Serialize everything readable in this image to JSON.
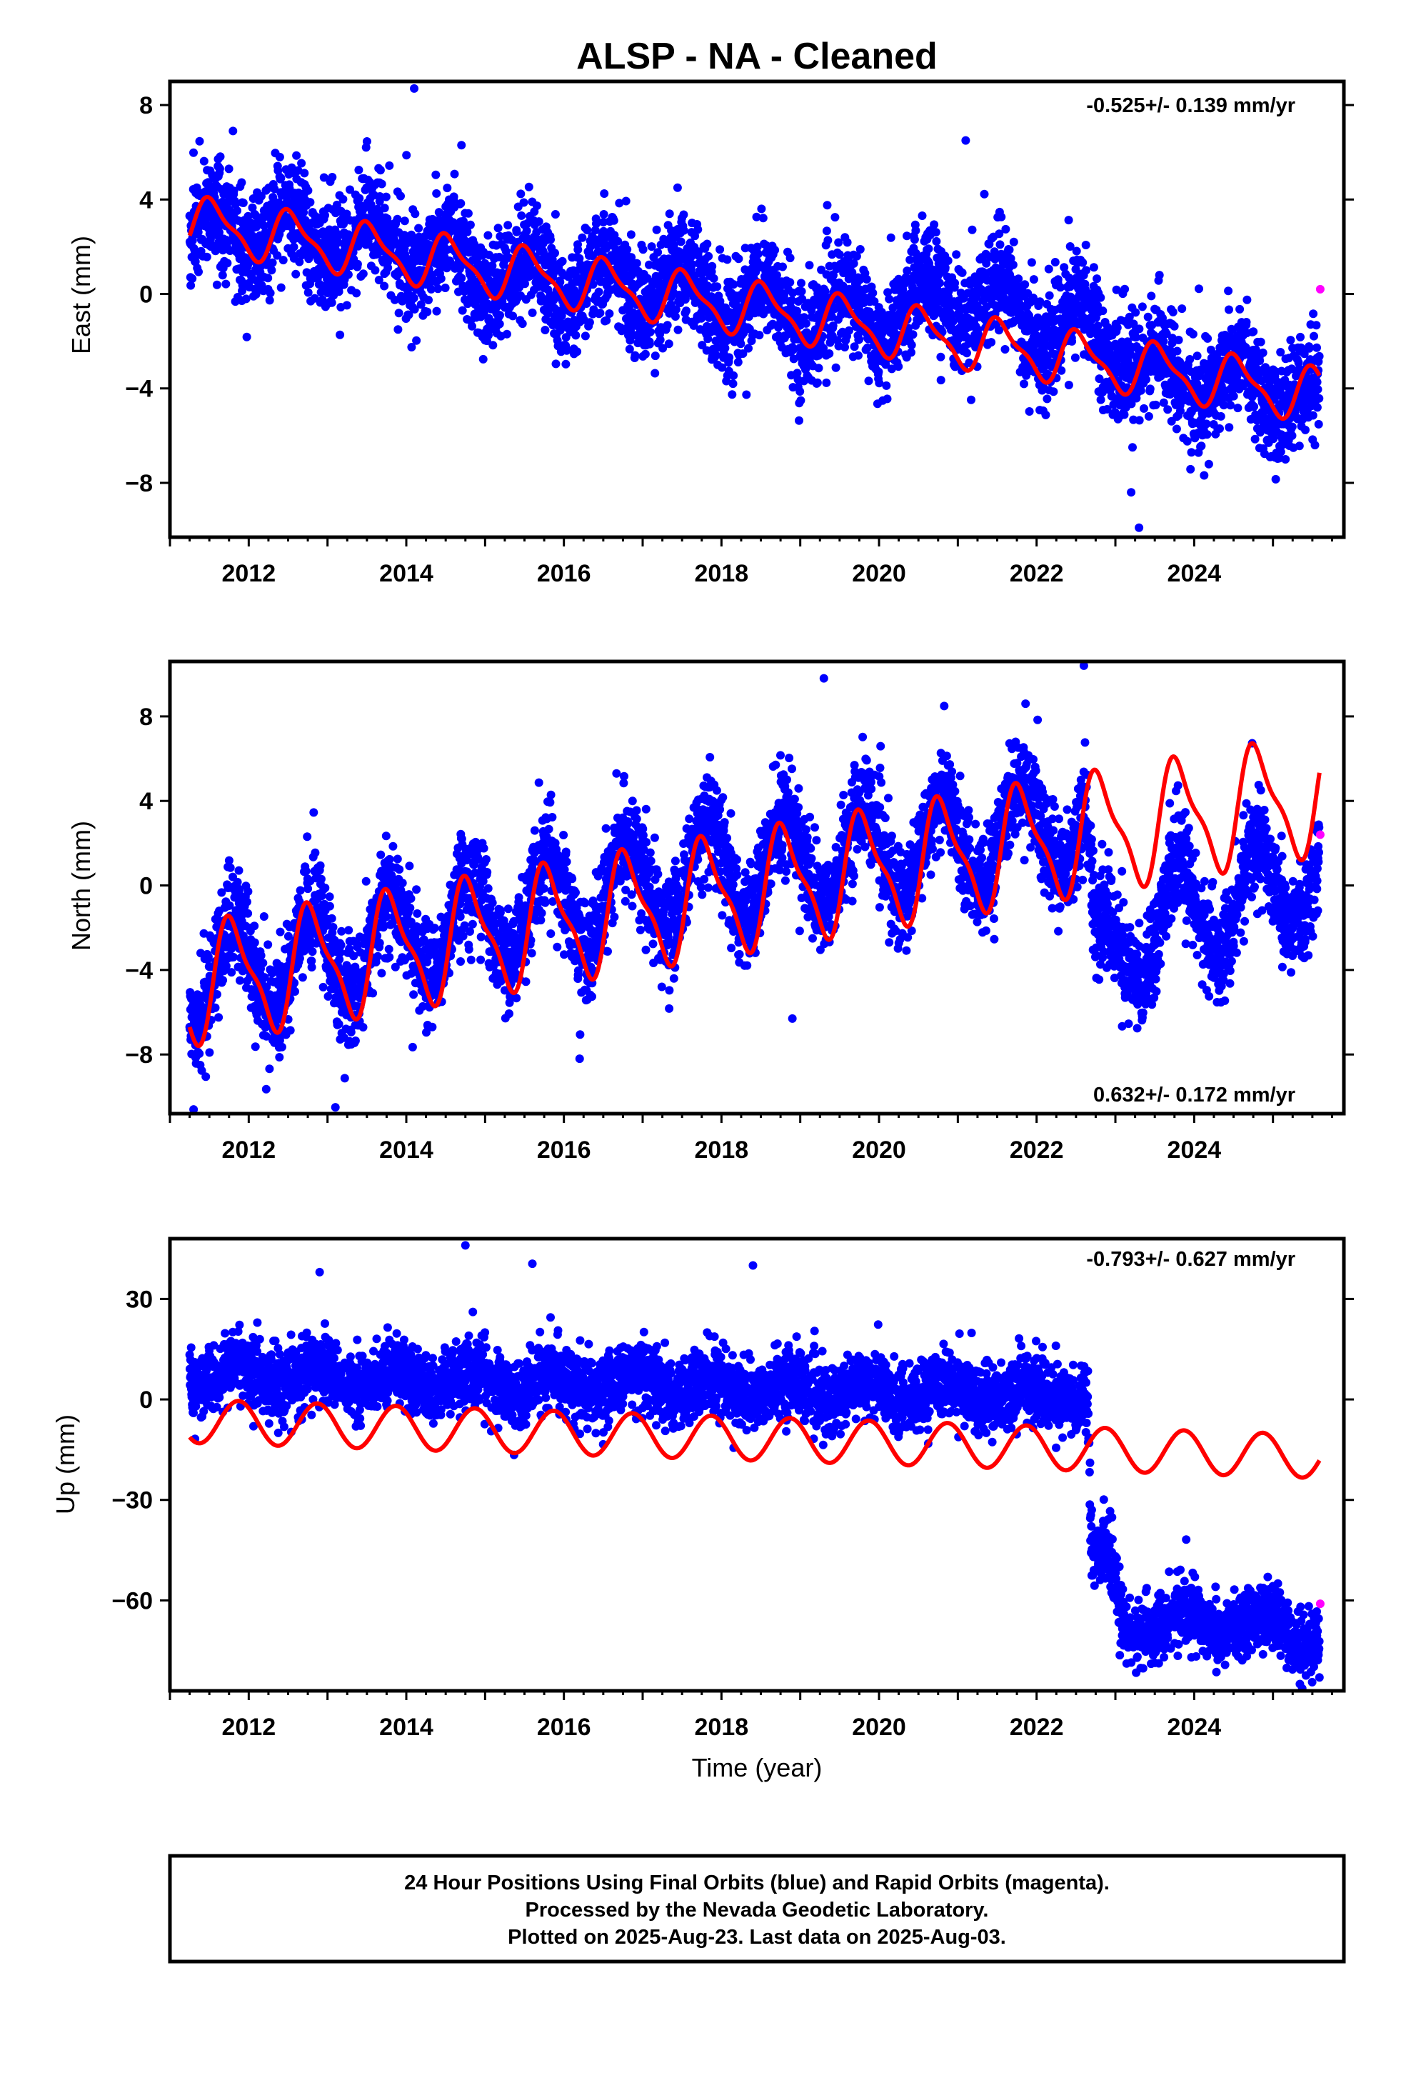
{
  "title": "ALSP  - NA - Cleaned",
  "xlabel": "Time (year)",
  "colors": {
    "final": "#0000ff",
    "rapid": "#ff00ff",
    "model": "#ff0000",
    "frame": "#000000"
  },
  "footer": {
    "line1": "24 Hour Positions Using Final Orbits (blue) and Rapid Orbits (magenta).",
    "line2": "Processed by the Nevada Geodetic Laboratory.",
    "line3": "Plotted on 2025-Aug-23. Last data on 2025-Aug-03."
  },
  "chart_data": [
    {
      "type": "scatter",
      "id": "east",
      "ylabel": "East (mm)",
      "rate_text": "-0.525+/- 0.139 mm/yr",
      "rate_position": "top-right",
      "xlim": [
        2011.0,
        2025.9
      ],
      "ylim": [
        -10.3,
        9.0
      ],
      "xticks": [
        2012,
        2014,
        2016,
        2018,
        2020,
        2022,
        2024
      ],
      "yticks": [
        -8,
        -4,
        0,
        4,
        8
      ],
      "ytick_labels": [
        "−8",
        "−4",
        "0",
        "4",
        "8"
      ],
      "data_start": 2011.25,
      "data_end": 2025.59,
      "series": [
        {
          "name": "Final Orbits",
          "kind": "points",
          "centre": [
            [
              2011.25,
              2.6
            ],
            [
              2012.0,
              2.8
            ],
            [
              2013.0,
              2.4
            ],
            [
              2014.0,
              2.0
            ],
            [
              2015.0,
              0.8
            ],
            [
              2016.0,
              0.6
            ],
            [
              2017.0,
              0.3
            ],
            [
              2018.0,
              -0.3
            ],
            [
              2019.0,
              -0.9
            ],
            [
              2020.0,
              -1.0
            ],
            [
              2021.0,
              0.0
            ],
            [
              2022.0,
              -1.1
            ],
            [
              2022.8,
              -1.6
            ],
            [
              2023.5,
              -3.5
            ],
            [
              2024.5,
              -3.7
            ],
            [
              2025.59,
              -4.6
            ]
          ],
          "seasonal_amplitude": 1.1,
          "scatter": 1.15,
          "outliers": [
            [
              2014.1,
              8.7
            ],
            [
              2021.1,
              6.5
            ],
            [
              2023.3,
              -9.9
            ],
            [
              2023.2,
              -8.4
            ],
            [
              2011.8,
              6.9
            ],
            [
              2014.7,
              6.3
            ]
          ]
        },
        {
          "name": "Rapid Orbits",
          "kind": "points",
          "values": [
            [
              2025.6,
              0.2
            ]
          ]
        },
        {
          "name": "Model",
          "kind": "line",
          "trend": [
            [
              2011.25,
              3.0
            ],
            [
              2025.59,
              -4.3
            ]
          ],
          "annual_amplitude": 1.05,
          "semiannual_amplitude": 0.35,
          "phase": 0.3
        }
      ]
    },
    {
      "type": "scatter",
      "id": "north",
      "ylabel": "North (mm)",
      "rate_text": "0.632+/- 0.172 mm/yr",
      "rate_position": "bottom-right",
      "xlim": [
        2011.0,
        2025.9
      ],
      "ylim": [
        -10.8,
        10.6
      ],
      "xticks": [
        2012,
        2014,
        2016,
        2018,
        2020,
        2022,
        2024
      ],
      "yticks": [
        -8,
        -4,
        0,
        4,
        8
      ],
      "ytick_labels": [
        "−8",
        "−4",
        "0",
        "4",
        "8"
      ],
      "data_start": 2011.25,
      "data_end": 2025.59,
      "series": [
        {
          "name": "Final Orbits",
          "kind": "points",
          "centre": [
            [
              2011.25,
              -4.2
            ],
            [
              2013.0,
              -3.3
            ],
            [
              2015.0,
              -1.6
            ],
            [
              2017.0,
              0.0
            ],
            [
              2019.0,
              1.1
            ],
            [
              2021.0,
              2.0
            ],
            [
              2022.6,
              3.2
            ],
            [
              2022.75,
              -3.8
            ],
            [
              2023.5,
              -1.6
            ],
            [
              2024.5,
              -0.9
            ],
            [
              2025.59,
              0.8
            ]
          ],
          "seasonal_amplitude": 2.3,
          "scatter": 1.2,
          "outliers": [
            [
              2011.3,
              -10.6
            ],
            [
              2013.1,
              -10.5
            ],
            [
              2022.6,
              10.4
            ],
            [
              2019.3,
              9.8
            ],
            [
              2016.2,
              -8.2
            ],
            [
              2018.9,
              -6.3
            ]
          ]
        },
        {
          "name": "Rapid Orbits",
          "kind": "points",
          "values": [
            [
              2025.6,
              2.4
            ]
          ]
        },
        {
          "name": "Model",
          "kind": "line",
          "trend": [
            [
              2011.25,
              -4.7
            ],
            [
              2025.59,
              4.3
            ]
          ],
          "annual_amplitude": 2.6,
          "semiannual_amplitude": 0.8,
          "phase": 0.55
        }
      ]
    },
    {
      "type": "scatter",
      "id": "up",
      "ylabel": "Up (mm)",
      "rate_text": "-0.793+/- 0.627 mm/yr",
      "rate_position": "top-right",
      "xlim": [
        2011.0,
        2025.9
      ],
      "ylim": [
        -87.0,
        48.0
      ],
      "xticks": [
        2012,
        2014,
        2016,
        2018,
        2020,
        2022,
        2024
      ],
      "yticks": [
        -60,
        -30,
        0,
        30
      ],
      "ytick_labels": [
        "−60",
        "−30",
        "0",
        "30"
      ],
      "data_start": 2011.25,
      "data_end": 2025.59,
      "series": [
        {
          "name": "Final Orbits",
          "kind": "points",
          "centre": [
            [
              2011.25,
              7.0
            ],
            [
              2013.0,
              6.5
            ],
            [
              2015.0,
              5.5
            ],
            [
              2017.0,
              4.0
            ],
            [
              2019.0,
              2.5
            ],
            [
              2021.0,
              2.0
            ],
            [
              2022.65,
              1.5
            ],
            [
              2022.7,
              -47.0
            ],
            [
              2022.9,
              -48.0
            ],
            [
              2023.1,
              -68.0
            ],
            [
              2024.0,
              -66.0
            ],
            [
              2025.0,
              -68.0
            ],
            [
              2025.59,
              -72.0
            ]
          ],
          "seasonal_amplitude": 3.0,
          "scatter": 5.0,
          "outliers": [
            [
              2014.75,
              46.0
            ],
            [
              2015.6,
              40.5
            ],
            [
              2018.4,
              40.0
            ],
            [
              2012.9,
              38.0
            ],
            [
              2022.7,
              -33.0
            ],
            [
              2025.59,
              -83.0
            ]
          ]
        },
        {
          "name": "Rapid Orbits",
          "kind": "points",
          "values": [
            [
              2025.6,
              -61.0
            ]
          ]
        },
        {
          "name": "Model",
          "kind": "line",
          "trend": [
            [
              2011.25,
              -6.5
            ],
            [
              2025.59,
              -17.0
            ]
          ],
          "annual_amplitude": 6.5,
          "semiannual_amplitude": 0.0,
          "phase": 0.62
        }
      ]
    }
  ]
}
